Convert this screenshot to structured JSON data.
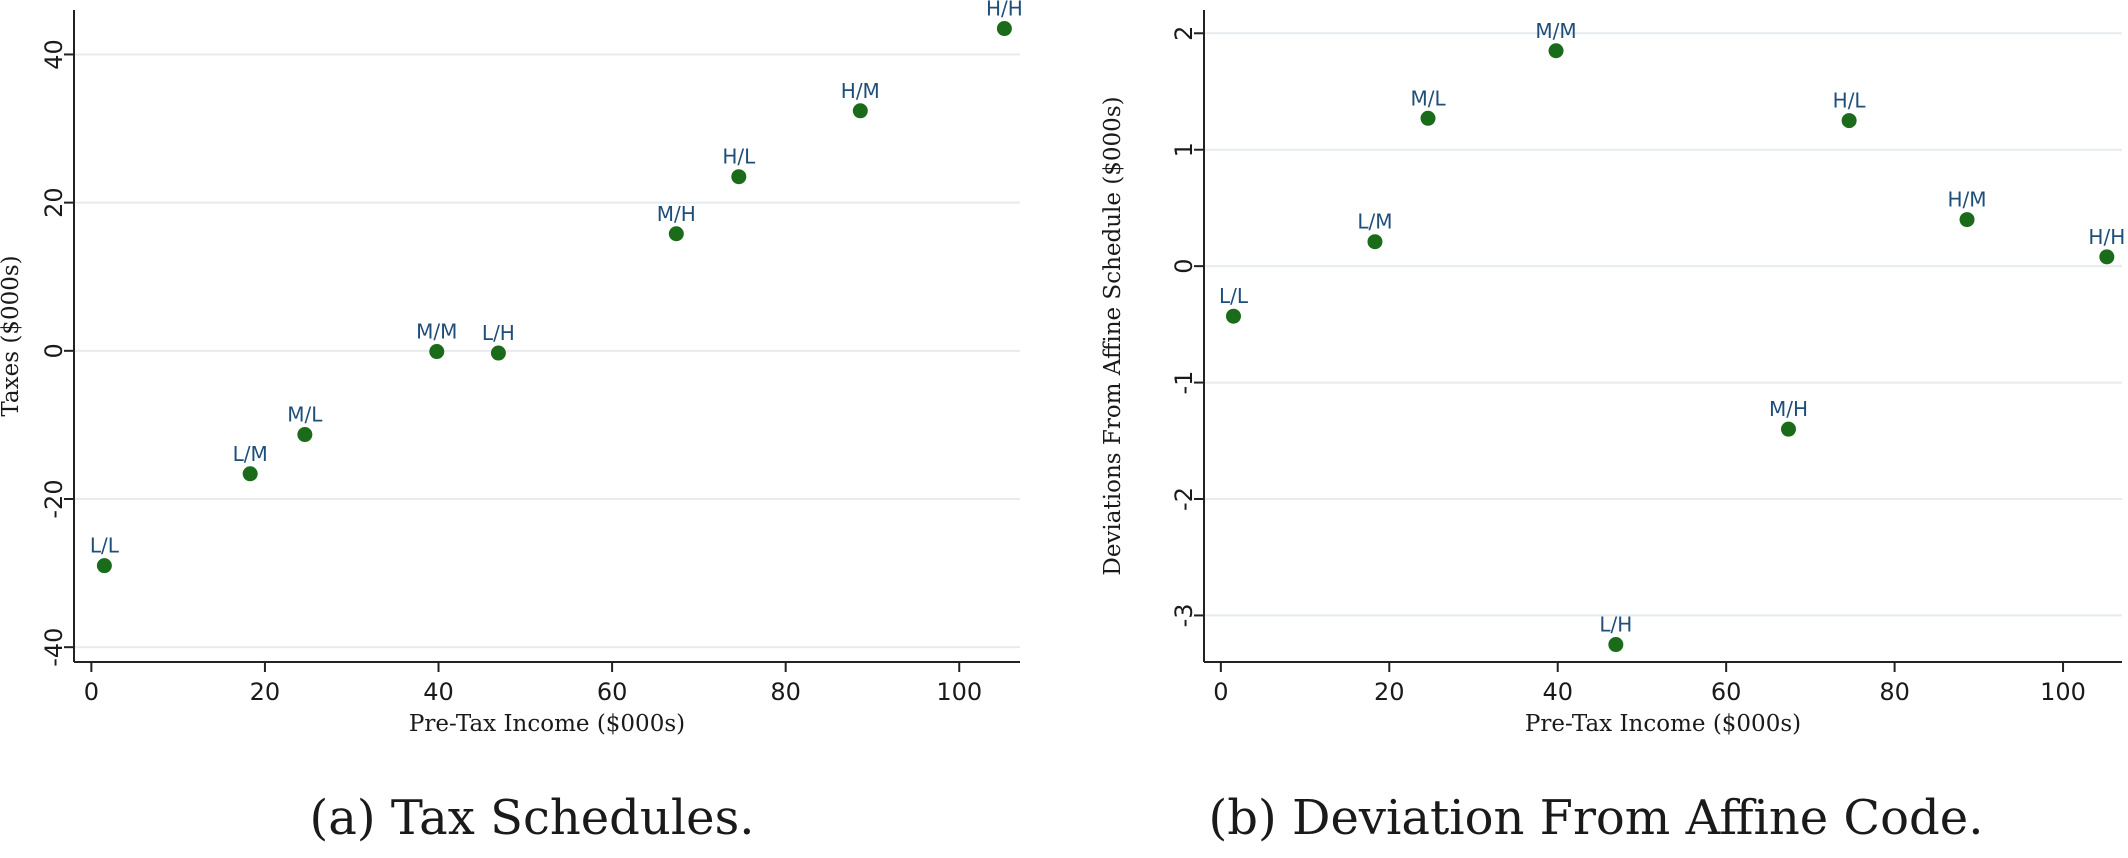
{
  "chart_data": [
    {
      "type": "scatter",
      "caption": "(a) Tax Schedules.",
      "xlabel": "Pre-Tax Income ($000s)",
      "ylabel": "Taxes ($000s)",
      "xlim": [
        -2,
        107
      ],
      "ylim": [
        -42,
        46
      ],
      "xticks": [
        0,
        20,
        40,
        60,
        80,
        100
      ],
      "yticks": [
        -40,
        -20,
        0,
        20,
        40
      ],
      "grid": "horizontal",
      "marker_color": "#1a6b1a",
      "label_color": "#1f4e79",
      "points": [
        {
          "label": "L/L",
          "x": 1.5,
          "y": -29.0
        },
        {
          "label": "L/M",
          "x": 18.3,
          "y": -16.6
        },
        {
          "label": "M/L",
          "x": 24.6,
          "y": -11.3
        },
        {
          "label": "M/M",
          "x": 39.8,
          "y": -0.1
        },
        {
          "label": "L/H",
          "x": 46.9,
          "y": -0.3
        },
        {
          "label": "M/H",
          "x": 67.4,
          "y": 15.8
        },
        {
          "label": "H/L",
          "x": 74.6,
          "y": 23.5
        },
        {
          "label": "H/M",
          "x": 88.6,
          "y": 32.4
        },
        {
          "label": "H/H",
          "x": 105.2,
          "y": 43.5
        }
      ]
    },
    {
      "type": "scatter",
      "caption": "(b) Deviation From Affine Code.",
      "xlabel": "Pre-Tax Income ($000s)",
      "ylabel": "Deviations From Affine Schedule ($000s)",
      "xlim": [
        -2,
        107
      ],
      "ylim": [
        -3.4,
        2.2
      ],
      "xticks": [
        0,
        20,
        40,
        60,
        80,
        100
      ],
      "yticks": [
        -3,
        -2,
        -1,
        0,
        1,
        2
      ],
      "grid": "horizontal",
      "marker_color": "#1a6b1a",
      "label_color": "#1f4e79",
      "points": [
        {
          "label": "L/L",
          "x": 1.5,
          "y": -0.43
        },
        {
          "label": "L/M",
          "x": 18.3,
          "y": 0.21
        },
        {
          "label": "M/L",
          "x": 24.6,
          "y": 1.27
        },
        {
          "label": "M/M",
          "x": 39.8,
          "y": 1.85
        },
        {
          "label": "L/H",
          "x": 46.9,
          "y": -3.25
        },
        {
          "label": "M/H",
          "x": 67.4,
          "y": -1.4
        },
        {
          "label": "H/L",
          "x": 74.6,
          "y": 1.25
        },
        {
          "label": "H/M",
          "x": 88.6,
          "y": 0.4
        },
        {
          "label": "H/H",
          "x": 105.2,
          "y": 0.08
        }
      ]
    }
  ]
}
